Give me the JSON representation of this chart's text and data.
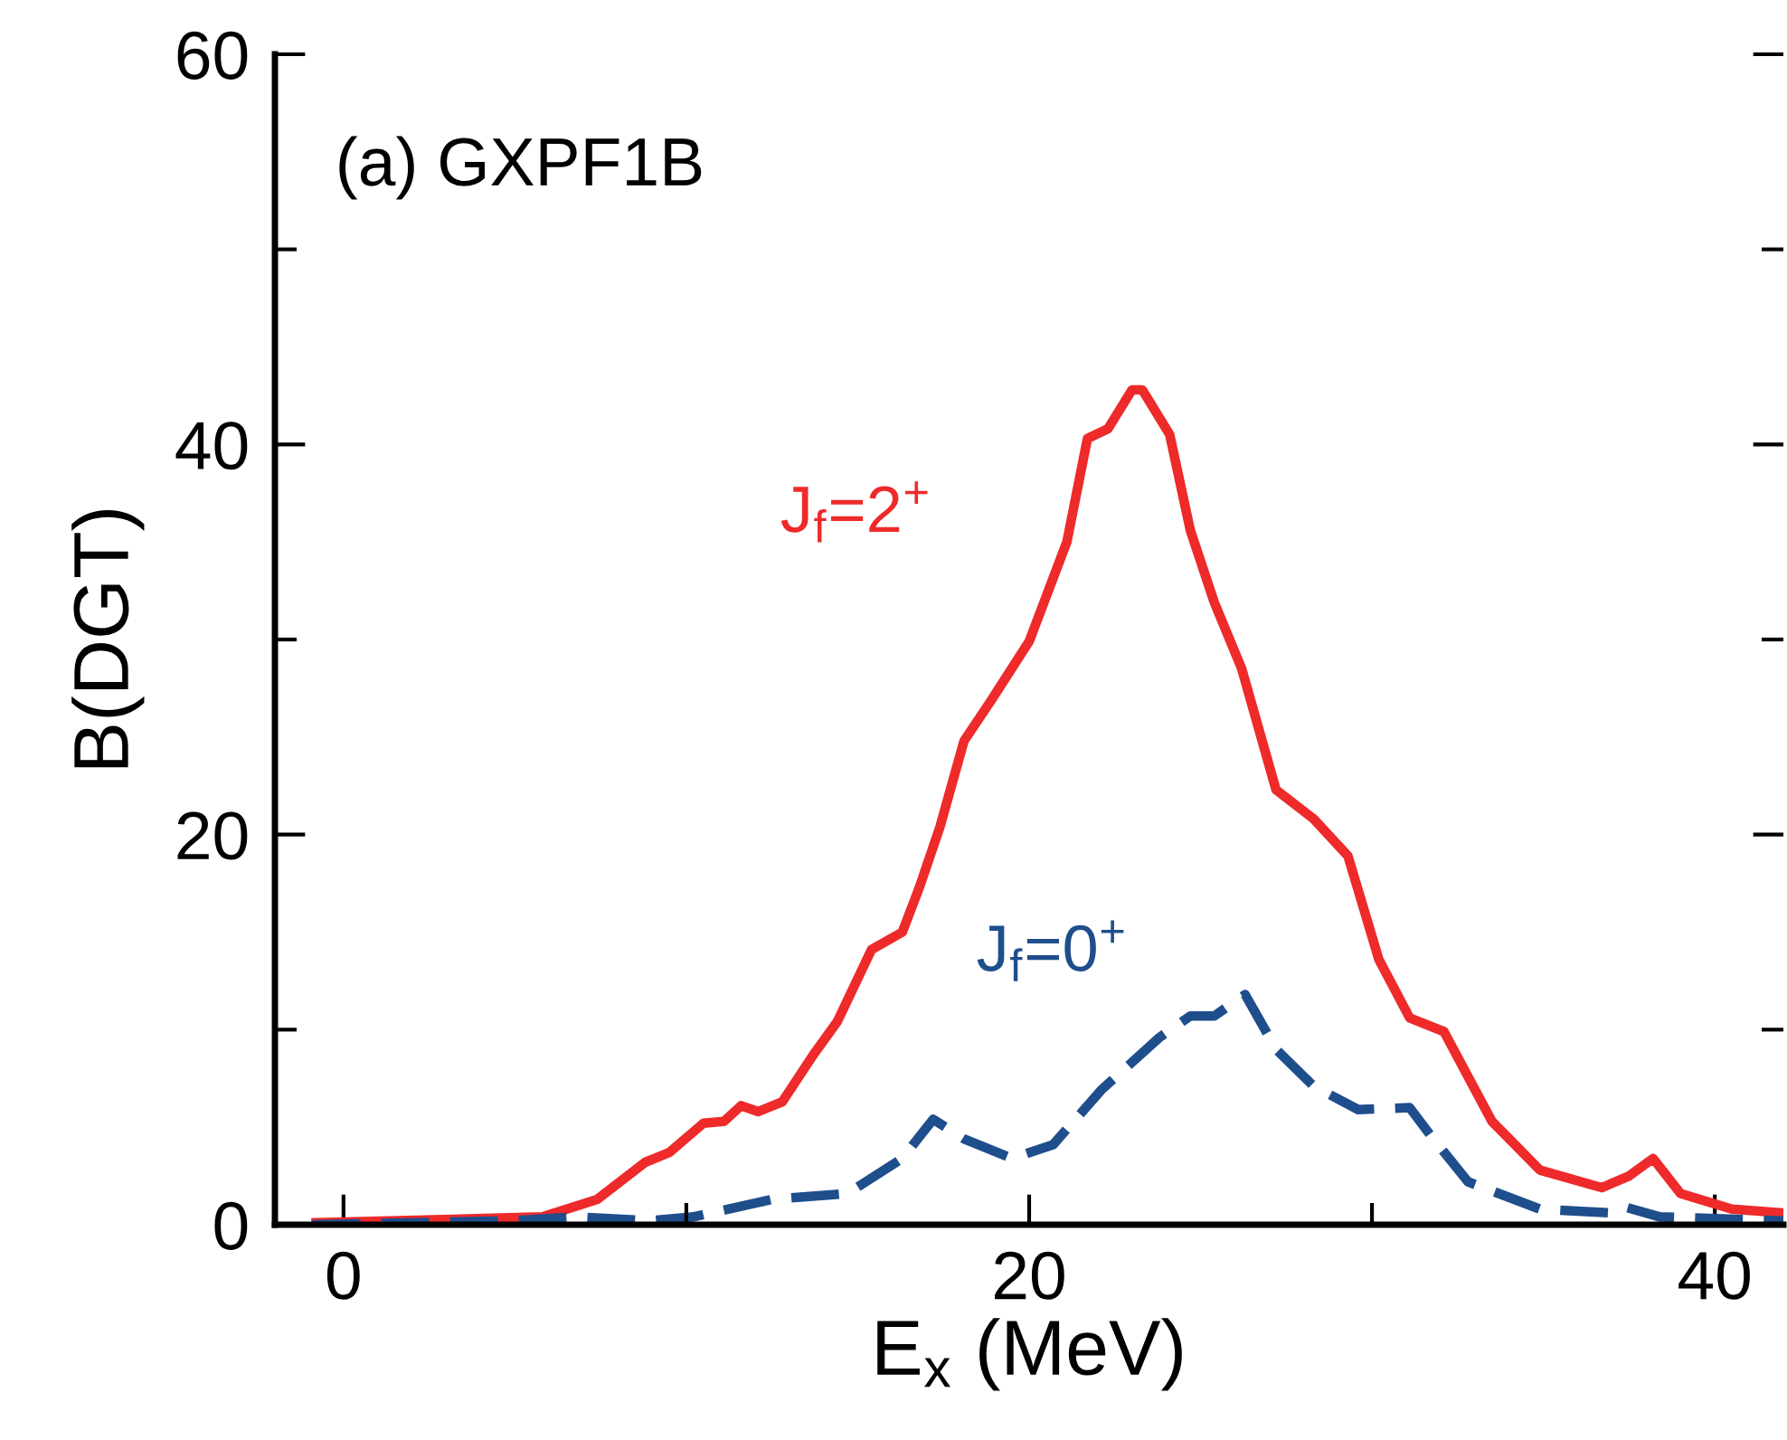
{
  "chart_data": {
    "type": "line",
    "xlabel": "E$_{x}$ (MeV)",
    "ylabel": "B(DGT)",
    "annotations": [
      "(a) GXPF1B"
    ],
    "xlim": [
      -2,
      42
    ],
    "ylim": [
      0,
      60
    ],
    "xticks": [
      0,
      {
        "value": 10,
        "label": null
      },
      20,
      {
        "value": 30,
        "label": null
      },
      40
    ],
    "yticks": [
      0,
      {
        "value": 10,
        "label": null
      },
      20,
      {
        "value": 30,
        "label": null
      },
      40,
      {
        "value": 50,
        "label": null
      },
      60
    ],
    "grid": false,
    "legend": false,
    "marker": "none",
    "series": [
      {
        "name": "J$_{f}$=2$^{+}$",
        "color": "#ee2a2a",
        "line_style": "solid",
        "x": [
          -0.8,
          5.8,
          7.4,
          8.8,
          9.5,
          10.5,
          11.1,
          11.6,
          12.1,
          12.8,
          13.7,
          14.4,
          15.4,
          16.3,
          16.8,
          17.4,
          18.1,
          18.9,
          20.0,
          21.1,
          21.7,
          22.3,
          23.0,
          23.3,
          24.1,
          24.7,
          25.4,
          26.2,
          27.2,
          28.3,
          29.3,
          30.2,
          31.1,
          32.1,
          33.5,
          34.9,
          36.7,
          37.5,
          38.2,
          39.0,
          40.5,
          42.0
        ],
        "values": [
          0.1,
          0.4,
          1.3,
          3.2,
          3.7,
          5.2,
          5.3,
          6.1,
          5.8,
          6.3,
          8.7,
          10.4,
          14.1,
          15.0,
          17.3,
          20.4,
          24.8,
          26.9,
          29.9,
          35.0,
          40.3,
          40.8,
          42.8,
          42.8,
          40.5,
          35.6,
          31.9,
          28.5,
          22.3,
          20.8,
          18.9,
          13.6,
          10.6,
          9.9,
          5.3,
          2.8,
          1.9,
          2.5,
          3.4,
          1.6,
          0.8,
          0.6
        ]
      },
      {
        "name": "J$_{f}$=0$^{+}$",
        "color": "#1f4e8c",
        "line_style": "dashed",
        "x": [
          -0.9,
          4.9,
          6.8,
          8.9,
          10.2,
          12.5,
          14.7,
          16.3,
          17.2,
          18.1,
          19.5,
          20.7,
          22.1,
          23.8,
          24.7,
          25.4,
          26.3,
          27.2,
          28.3,
          29.6,
          31.1,
          31.7,
          32.8,
          34.9,
          37.0,
          37.4,
          38.4,
          42.0
        ],
        "values": [
          0.0,
          0.2,
          0.4,
          0.2,
          0.4,
          1.3,
          1.6,
          3.4,
          5.4,
          4.4,
          3.4,
          4.1,
          6.9,
          9.6,
          10.7,
          10.7,
          11.8,
          9.0,
          7.1,
          5.9,
          6.0,
          4.6,
          2.2,
          0.8,
          0.6,
          0.9,
          0.4,
          0.2
        ]
      }
    ]
  }
}
